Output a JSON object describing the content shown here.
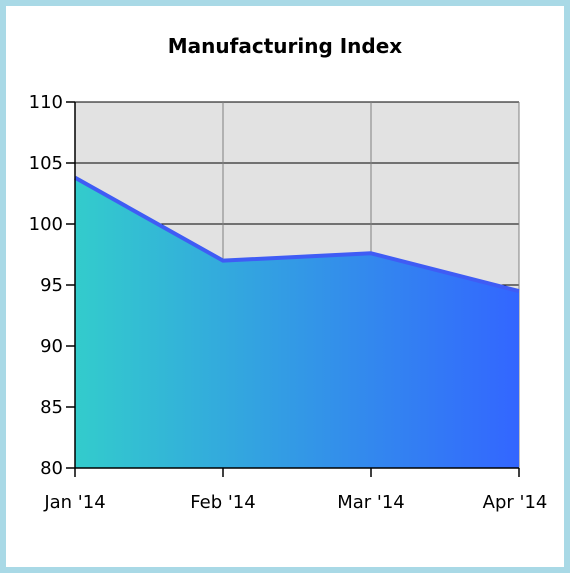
{
  "chart_data": {
    "type": "area",
    "title": "Manufacturing Index",
    "categories": [
      "Jan '14",
      "Feb '14",
      "Mar '14",
      "Apr '14"
    ],
    "series": [
      {
        "values": [
          103.8,
          97.0,
          97.6,
          94.5
        ]
      }
    ],
    "xlabel": "",
    "ylabel": "",
    "ylim": [
      80,
      110
    ],
    "yticks": [
      80,
      85,
      90,
      95,
      100,
      105,
      110
    ],
    "grid": true,
    "legend": "none",
    "colors": {
      "plot_background": "#e2e2e2",
      "fill_start": "#33cccc",
      "fill_end": "#3366ff",
      "line": "#3f5cf5",
      "grid_horizontal": "#000000",
      "grid_vertical": "#808080",
      "border": "#a9d9e6"
    }
  }
}
